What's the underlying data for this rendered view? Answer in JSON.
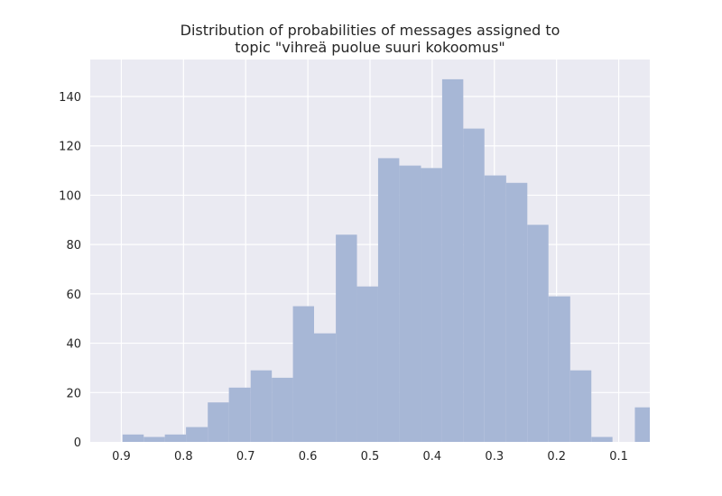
{
  "chart_data": {
    "type": "bar",
    "title_lines": [
      "Distribution of probabilities of messages assigned to",
      "topic \"vihreä puolue suuri kokoomus\""
    ],
    "xlabel": "",
    "ylabel": "",
    "x_axis_reversed": true,
    "xlim": [
      0.95,
      0.05
    ],
    "ylim": [
      0,
      155
    ],
    "grid": true,
    "x_ticks": [
      0.9,
      0.8,
      0.7,
      0.6,
      0.5,
      0.4,
      0.3,
      0.2,
      0.1
    ],
    "x_tick_labels": [
      "0.9",
      "0.8",
      "0.7",
      "0.6",
      "0.5",
      "0.4",
      "0.3",
      "0.2",
      "0.1"
    ],
    "y_ticks": [
      0,
      20,
      40,
      60,
      80,
      100,
      120,
      140
    ],
    "y_tick_labels": [
      "0",
      "20",
      "40",
      "60",
      "80",
      "100",
      "120",
      "140"
    ],
    "bin_edges": [
      0.898,
      0.864,
      0.83,
      0.796,
      0.761,
      0.727,
      0.692,
      0.658,
      0.624,
      0.59,
      0.555,
      0.521,
      0.487,
      0.453,
      0.418,
      0.384,
      0.35,
      0.316,
      0.281,
      0.247,
      0.213,
      0.178,
      0.144,
      0.11
    ],
    "values": [
      3,
      2,
      3,
      6,
      16,
      22,
      29,
      26,
      55,
      44,
      84,
      63,
      115,
      112,
      111,
      147,
      127,
      108,
      105,
      88,
      59,
      29,
      2
    ],
    "extra_bar": {
      "from": 0.074,
      "to": 0.05,
      "value": 14
    },
    "colors": {
      "bar": "#a7b7d6",
      "background": "#eaeaf2",
      "grid": "#ffffff",
      "text": "#262626"
    }
  }
}
